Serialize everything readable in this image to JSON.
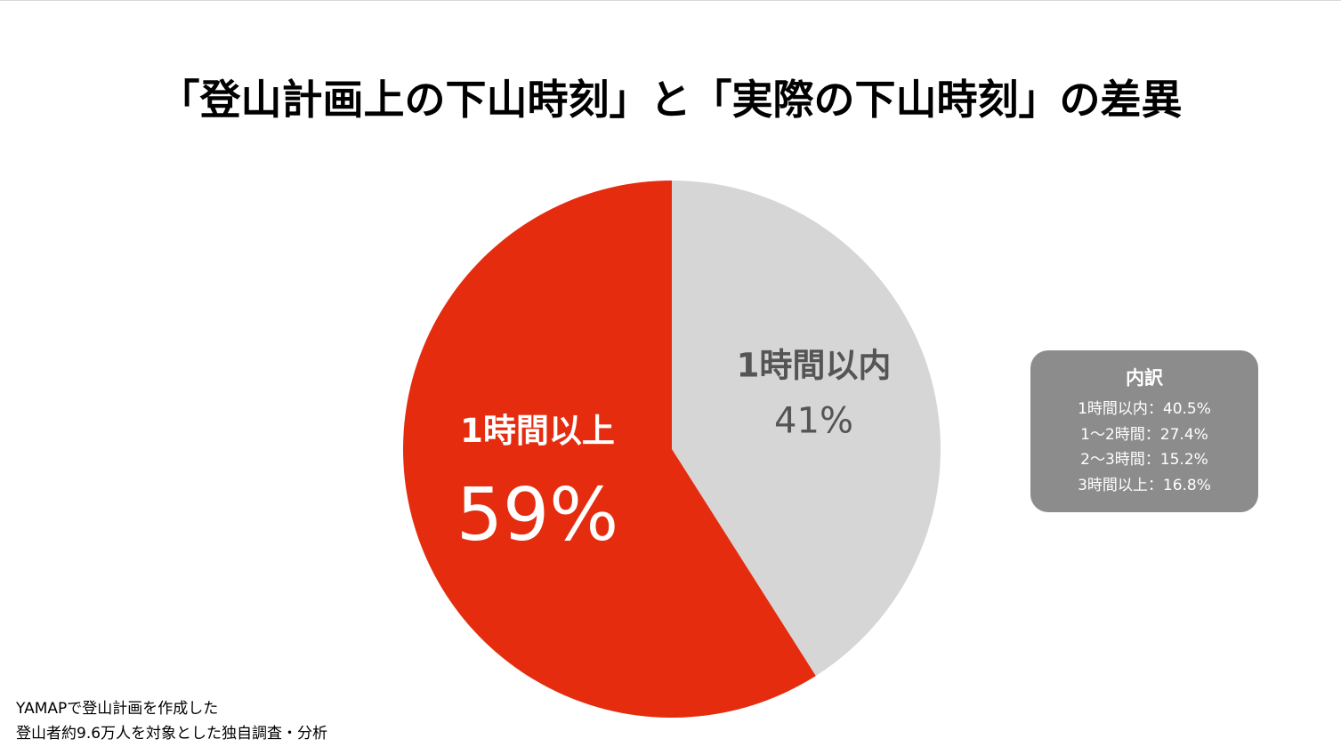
{
  "title": "「登山計画上の下山時刻」と「実際の下山時刻」の差異",
  "chart_data": {
    "type": "pie",
    "start": "12 o'clock",
    "direction": "clockwise",
    "slices": [
      {
        "label": "1時間以内",
        "value": 41,
        "display": "41%",
        "color": "#d6d6d6",
        "text_color": "#555555"
      },
      {
        "label": "1時間以上",
        "value": 59,
        "display": "59%",
        "color": "#e52c0f",
        "text_color": "#ffffff"
      }
    ]
  },
  "breakdown": {
    "title": "内訳",
    "items": [
      "1時間以内：40.5%",
      "1〜2時間：27.4%",
      "2〜3時間：15.2%",
      "3時間以上：16.8%"
    ],
    "background": "#8c8c8c"
  },
  "source": {
    "line1": "YAMAPで登山計画を作成した",
    "line2": "登山者約9.6万人を対象とした独自調査・分析"
  }
}
